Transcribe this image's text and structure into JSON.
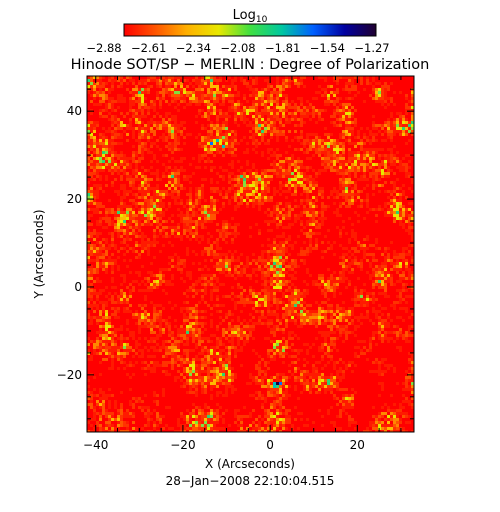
{
  "chart_data": {
    "type": "heatmap",
    "title": "Hinode SOT/SP − MERLIN : Degree of Polarization",
    "xlabel": "X (Arcseconds)",
    "ylabel": "Y (Arcseconds)",
    "xlim": [
      -42,
      33
    ],
    "ylim": [
      -33,
      48
    ],
    "x_ticks": [
      -40,
      -20,
      0,
      20
    ],
    "y_ticks": [
      -20,
      0,
      20,
      40
    ],
    "x_tick_labels": [
      "−40",
      "−20",
      "0",
      "20"
    ],
    "y_tick_labels": [
      "−20",
      "0",
      "20",
      "40"
    ],
    "colorbar": {
      "label_main": "Log",
      "label_sub": "10",
      "range": [
        -2.88,
        -1.27
      ],
      "tick_labels": [
        "−2.88",
        "−2.61",
        "−2.34",
        "−2.08",
        "−1.81",
        "−1.54",
        "−1.27"
      ],
      "colors": [
        "#ff0000",
        "#ff5500",
        "#ffb000",
        "#e8e800",
        "#40e040",
        "#00c8a0",
        "#0060ff",
        "#0000a0",
        "#200030"
      ]
    },
    "timestamp": "28−Jan−2008 22:10:04.515",
    "field_description": "dense granular mottle dominated by low values (red), with scattered high-polarization clumps"
  }
}
